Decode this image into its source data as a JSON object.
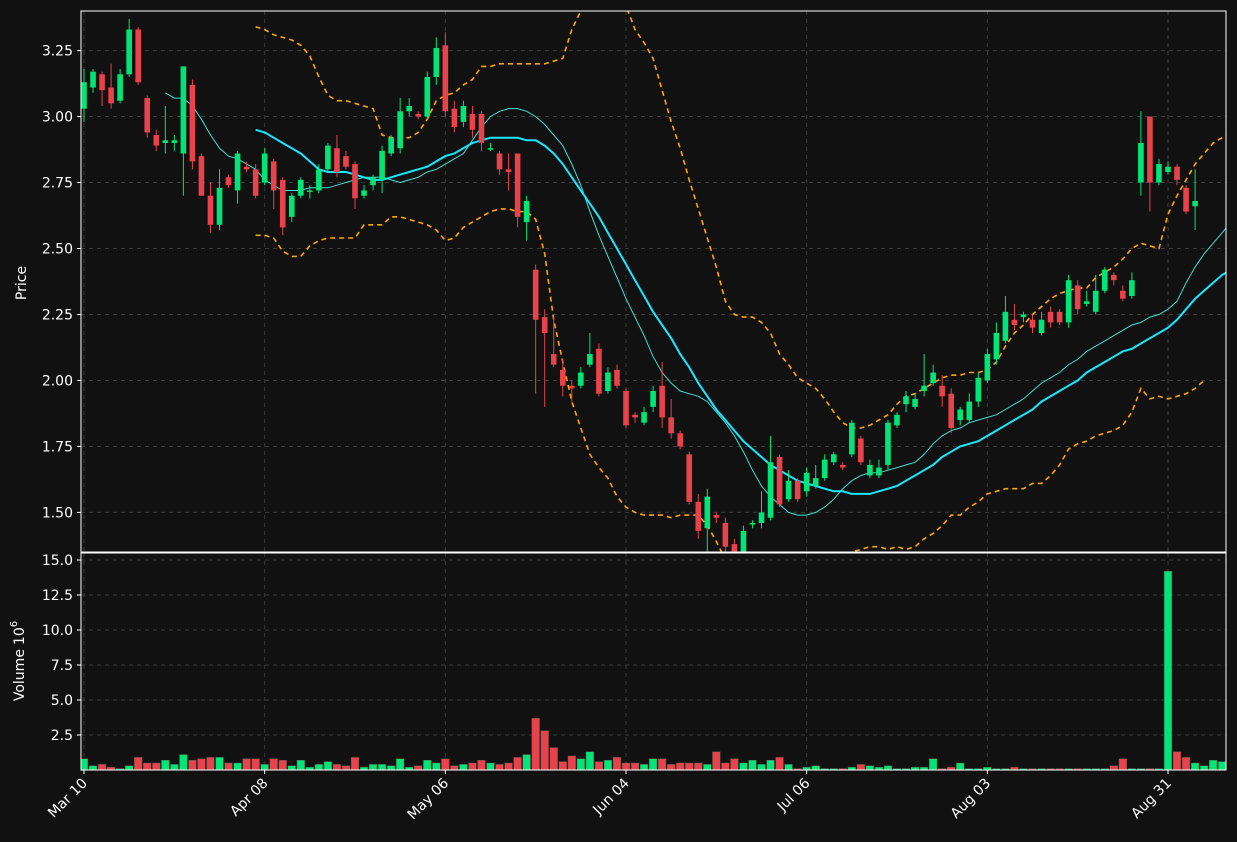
{
  "chart_data": {
    "type": "candlestick",
    "panels": [
      {
        "id": "price",
        "ylabel": "Price",
        "ylim": [
          1.35,
          3.4
        ],
        "yticks": [
          "1.50",
          "1.75",
          "2.00",
          "2.25",
          "2.50",
          "2.75",
          "3.00",
          "3.25"
        ]
      },
      {
        "id": "volume",
        "ylabel": "Volume",
        "ylabel_exponent": "6",
        "ylim": [
          0,
          15.5
        ],
        "yticks": [
          "2.5",
          "5.0",
          "7.5",
          "10.0",
          "12.5",
          "15.0"
        ]
      }
    ],
    "xticks": [
      {
        "label": "Mar 10",
        "index": 0
      },
      {
        "label": "Apr 08",
        "index": 20
      },
      {
        "label": "May 06",
        "index": 40
      },
      {
        "label": "Jun 04",
        "index": 60
      },
      {
        "label": "Jul 06",
        "index": 80
      },
      {
        "label": "Aug 03",
        "index": 100
      },
      {
        "label": "Aug 31",
        "index": 120
      }
    ],
    "n_bars": 127,
    "grid": true,
    "colors": {
      "background": "#111111",
      "up": "#00e676",
      "down": "#e8424a",
      "ma_fast": "#40e0d0",
      "ma_slow": "#18e8ff",
      "bands": "#ffa500",
      "grid": "#3a3a3a",
      "axis": "#ffffff"
    },
    "candles": [
      [
        3.03,
        3.13,
        2.98,
        3.18
      ],
      [
        3.11,
        3.17,
        3.09,
        3.18
      ],
      [
        3.16,
        3.1,
        3.04,
        3.17
      ],
      [
        3.11,
        3.05,
        3.03,
        3.2
      ],
      [
        3.06,
        3.16,
        3.05,
        3.18
      ],
      [
        3.16,
        3.33,
        3.15,
        3.37
      ],
      [
        3.33,
        3.13,
        3.12,
        3.34
      ],
      [
        3.07,
        2.94,
        2.92,
        3.08
      ],
      [
        2.93,
        2.89,
        2.87,
        2.95
      ],
      [
        2.9,
        2.91,
        2.86,
        3.04
      ],
      [
        2.9,
        2.91,
        2.87,
        2.93
      ],
      [
        2.86,
        3.19,
        2.7,
        3.19
      ],
      [
        3.12,
        2.83,
        2.8,
        3.14
      ],
      [
        2.85,
        2.7,
        2.7,
        2.86
      ],
      [
        2.7,
        2.59,
        2.56,
        2.75
      ],
      [
        2.59,
        2.73,
        2.57,
        2.8
      ],
      [
        2.77,
        2.74,
        2.73,
        2.78
      ],
      [
        2.72,
        2.86,
        2.67,
        2.87
      ],
      [
        2.81,
        2.8,
        2.79,
        2.83
      ],
      [
        2.8,
        2.7,
        2.69,
        2.82
      ],
      [
        2.75,
        2.86,
        2.74,
        2.88
      ],
      [
        2.83,
        2.72,
        2.65,
        2.84
      ],
      [
        2.76,
        2.58,
        2.55,
        2.77
      ],
      [
        2.62,
        2.7,
        2.6,
        2.71
      ],
      [
        2.7,
        2.76,
        2.69,
        2.77
      ],
      [
        2.72,
        2.72,
        2.69,
        2.74
      ],
      [
        2.72,
        2.8,
        2.71,
        2.82
      ],
      [
        2.8,
        2.89,
        2.79,
        2.9
      ],
      [
        2.88,
        2.79,
        2.77,
        2.93
      ],
      [
        2.85,
        2.81,
        2.8,
        2.87
      ],
      [
        2.82,
        2.69,
        2.65,
        2.83
      ],
      [
        2.7,
        2.72,
        2.69,
        2.74
      ],
      [
        2.74,
        2.77,
        2.72,
        2.78
      ],
      [
        2.76,
        2.87,
        2.71,
        2.89
      ],
      [
        2.86,
        2.92,
        2.85,
        2.93
      ],
      [
        2.88,
        3.02,
        2.86,
        3.07
      ],
      [
        3.02,
        3.04,
        3.0,
        3.07
      ],
      [
        3.01,
        3.0,
        2.99,
        3.02
      ],
      [
        3.0,
        3.15,
        2.99,
        3.17
      ],
      [
        3.15,
        3.26,
        3.12,
        3.3
      ],
      [
        3.27,
        3.02,
        3.0,
        3.32
      ],
      [
        3.03,
        2.96,
        2.94,
        3.06
      ],
      [
        2.98,
        3.04,
        2.96,
        3.06
      ],
      [
        3.01,
        2.95,
        2.92,
        3.04
      ],
      [
        3.01,
        2.9,
        2.87,
        3.02
      ],
      [
        2.88,
        2.88,
        2.87,
        2.9
      ],
      [
        2.86,
        2.8,
        2.78,
        2.87
      ],
      [
        2.8,
        2.79,
        2.72,
        2.86
      ],
      [
        2.86,
        2.62,
        2.58,
        2.86
      ],
      [
        2.6,
        2.68,
        2.53,
        2.7
      ],
      [
        2.42,
        2.23,
        1.95,
        2.44
      ],
      [
        2.24,
        2.18,
        1.9,
        2.27
      ],
      [
        2.1,
        2.06,
        2.05,
        2.24
      ],
      [
        2.04,
        1.98,
        1.94,
        2.08
      ],
      [
        1.98,
        1.97,
        1.92,
        2.0
      ],
      [
        1.98,
        2.03,
        1.97,
        2.05
      ],
      [
        2.06,
        2.1,
        2.05,
        2.18
      ],
      [
        2.12,
        1.95,
        1.94,
        2.14
      ],
      [
        1.96,
        2.03,
        1.95,
        2.05
      ],
      [
        2.04,
        1.98,
        1.97,
        2.06
      ],
      [
        1.96,
        1.83,
        1.82,
        1.97
      ],
      [
        1.87,
        1.86,
        1.84,
        1.88
      ],
      [
        1.84,
        1.88,
        1.83,
        1.9
      ],
      [
        1.9,
        1.96,
        1.88,
        1.98
      ],
      [
        1.98,
        1.86,
        1.82,
        2.07
      ],
      [
        1.86,
        1.8,
        1.78,
        1.93
      ],
      [
        1.8,
        1.75,
        1.74,
        1.81
      ],
      [
        1.72,
        1.54,
        1.53,
        1.73
      ],
      [
        1.54,
        1.43,
        1.4,
        1.57
      ],
      [
        1.44,
        1.56,
        1.3,
        1.59
      ],
      [
        1.49,
        1.48,
        1.46,
        1.5
      ],
      [
        1.46,
        1.37,
        1.35,
        1.48
      ],
      [
        1.38,
        1.33,
        1.32,
        1.4
      ],
      [
        1.3,
        1.43,
        1.28,
        1.45
      ],
      [
        1.46,
        1.46,
        1.44,
        1.47
      ],
      [
        1.46,
        1.5,
        1.44,
        1.58
      ],
      [
        1.48,
        1.69,
        1.47,
        1.79
      ],
      [
        1.71,
        1.53,
        1.52,
        1.72
      ],
      [
        1.55,
        1.62,
        1.54,
        1.66
      ],
      [
        1.62,
        1.55,
        1.54,
        1.63
      ],
      [
        1.58,
        1.65,
        1.56,
        1.67
      ],
      [
        1.6,
        1.63,
        1.59,
        1.68
      ],
      [
        1.63,
        1.7,
        1.62,
        1.72
      ],
      [
        1.69,
        1.72,
        1.68,
        1.73
      ],
      [
        1.68,
        1.67,
        1.66,
        1.69
      ],
      [
        1.72,
        1.84,
        1.71,
        1.85
      ],
      [
        1.78,
        1.69,
        1.68,
        1.79
      ],
      [
        1.64,
        1.68,
        1.63,
        1.7
      ],
      [
        1.64,
        1.67,
        1.63,
        1.7
      ],
      [
        1.68,
        1.84,
        1.66,
        1.85
      ],
      [
        1.83,
        1.87,
        1.82,
        1.88
      ],
      [
        1.91,
        1.94,
        1.88,
        1.96
      ],
      [
        1.9,
        1.93,
        1.89,
        1.95
      ],
      [
        1.96,
        1.98,
        1.94,
        2.1
      ],
      [
        1.99,
        2.03,
        1.98,
        2.06
      ],
      [
        1.98,
        1.94,
        1.9,
        2.02
      ],
      [
        1.95,
        1.82,
        1.8,
        1.97
      ],
      [
        1.85,
        1.89,
        1.83,
        1.9
      ],
      [
        1.85,
        1.92,
        1.84,
        1.95
      ],
      [
        1.92,
        2.01,
        1.9,
        2.03
      ],
      [
        2.0,
        2.1,
        1.99,
        2.12
      ],
      [
        2.08,
        2.18,
        2.06,
        2.22
      ],
      [
        2.15,
        2.26,
        2.14,
        2.32
      ],
      [
        2.23,
        2.21,
        2.19,
        2.29
      ],
      [
        2.24,
        2.25,
        2.22,
        2.26
      ],
      [
        2.23,
        2.2,
        2.18,
        2.25
      ],
      [
        2.18,
        2.23,
        2.17,
        2.26
      ],
      [
        2.26,
        2.22,
        2.2,
        2.28
      ],
      [
        2.26,
        2.22,
        2.21,
        2.27
      ],
      [
        2.22,
        2.38,
        2.2,
        2.4
      ],
      [
        2.36,
        2.27,
        2.25,
        2.38
      ],
      [
        2.29,
        2.3,
        2.28,
        2.34
      ],
      [
        2.26,
        2.34,
        2.25,
        2.4
      ],
      [
        2.34,
        2.42,
        2.33,
        2.43
      ],
      [
        2.4,
        2.38,
        2.36,
        2.41
      ],
      [
        2.34,
        2.31,
        2.3,
        2.36
      ],
      [
        2.32,
        2.38,
        2.31,
        2.41
      ],
      [
        2.75,
        2.9,
        2.7,
        3.02
      ],
      [
        3.0,
        2.75,
        2.64,
        3.0
      ],
      [
        2.75,
        2.82,
        2.74,
        2.84
      ],
      [
        2.79,
        2.81,
        2.78,
        2.83
      ],
      [
        2.81,
        2.76,
        2.74,
        2.82
      ],
      [
        2.73,
        2.64,
        2.63,
        2.74
      ],
      [
        2.66,
        2.68,
        2.57,
        2.8
      ]
    ],
    "volume": [
      0.8,
      0.3,
      0.4,
      0.2,
      0.1,
      0.3,
      0.9,
      0.5,
      0.5,
      0.7,
      0.4,
      1.1,
      0.7,
      0.8,
      0.9,
      0.9,
      0.5,
      0.5,
      0.8,
      0.8,
      0.4,
      0.8,
      0.7,
      0.3,
      0.7,
      0.2,
      0.4,
      0.6,
      0.4,
      0.3,
      0.9,
      0.2,
      0.4,
      0.4,
      0.3,
      0.8,
      0.2,
      0.3,
      0.7,
      0.5,
      0.8,
      0.3,
      0.4,
      0.5,
      0.7,
      0.5,
      0.4,
      0.5,
      0.9,
      1.1,
      3.7,
      2.8,
      1.6,
      0.6,
      1.0,
      0.8,
      1.3,
      0.6,
      0.7,
      0.9,
      0.5,
      0.5,
      0.4,
      0.8,
      0.8,
      0.4,
      0.5,
      0.5,
      0.5,
      0.4,
      1.3,
      0.5,
      0.8,
      0.5,
      0.7,
      0.4,
      0.7,
      0.9,
      0.4,
      0.1,
      0.2,
      0.3,
      0.1,
      0.1,
      0.1,
      0.2,
      0.4,
      0.3,
      0.2,
      0.3,
      0.1,
      0.1,
      0.2,
      0.2,
      0.8,
      0.1,
      0.2,
      0.5,
      0.1,
      0.1,
      0.2,
      0.1,
      0.1,
      0.2,
      0.1,
      0.1,
      0.1,
      0.1,
      0.1,
      0.1,
      0.1,
      0.1,
      0.1,
      0.1,
      0.3,
      0.8,
      0.1,
      0.1,
      0.1,
      0.1,
      14.2,
      1.3,
      0.9,
      0.5,
      0.3,
      0.7,
      0.6
    ],
    "overlays": [
      {
        "kind": "ma_fast",
        "start": 9,
        "values": [
          3.09,
          3.07,
          3.07,
          3.04,
          2.99,
          2.93,
          2.88,
          2.85,
          2.84,
          2.82,
          2.8,
          2.76,
          2.74,
          2.72,
          2.72,
          2.72,
          2.73,
          2.73,
          2.73,
          2.74,
          2.75,
          2.76,
          2.77,
          2.77,
          2.77,
          2.76,
          2.75,
          2.76,
          2.77,
          2.79,
          2.8,
          2.82,
          2.84,
          2.86,
          2.91,
          2.96,
          3.0,
          3.02,
          3.03,
          3.03,
          3.02,
          3.0,
          2.97,
          2.93,
          2.89,
          2.82,
          2.74,
          2.64,
          2.55,
          2.47,
          2.39,
          2.31,
          2.24,
          2.17,
          2.09,
          2.03,
          1.99,
          1.96,
          1.95,
          1.94,
          1.92,
          1.88,
          1.84,
          1.79,
          1.73,
          1.66,
          1.6,
          1.56,
          1.53,
          1.5,
          1.49,
          1.49,
          1.5,
          1.52,
          1.55,
          1.59,
          1.62,
          1.64,
          1.65,
          1.65,
          1.66,
          1.67,
          1.68,
          1.69,
          1.72,
          1.76,
          1.79,
          1.81,
          1.82,
          1.84,
          1.85,
          1.86,
          1.87,
          1.89,
          1.91,
          1.93,
          1.96,
          1.99,
          2.01,
          2.03,
          2.06,
          2.08,
          2.11,
          2.13,
          2.15,
          2.17,
          2.19,
          2.21,
          2.22,
          2.24,
          2.25,
          2.27,
          2.3,
          2.37,
          2.43,
          2.48,
          2.52,
          2.56,
          2.6,
          2.62,
          2.64
        ]
      },
      {
        "kind": "ma_slow",
        "start": 19,
        "values": [
          2.95,
          2.94,
          2.92,
          2.9,
          2.88,
          2.86,
          2.83,
          2.8,
          2.79,
          2.79,
          2.79,
          2.78,
          2.77,
          2.76,
          2.76,
          2.77,
          2.78,
          2.79,
          2.8,
          2.81,
          2.83,
          2.85,
          2.86,
          2.88,
          2.9,
          2.91,
          2.92,
          2.92,
          2.92,
          2.92,
          2.91,
          2.91,
          2.89,
          2.86,
          2.82,
          2.77,
          2.72,
          2.67,
          2.62,
          2.56,
          2.5,
          2.44,
          2.38,
          2.32,
          2.26,
          2.21,
          2.16,
          2.1,
          2.05,
          1.99,
          1.94,
          1.89,
          1.85,
          1.81,
          1.77,
          1.74,
          1.71,
          1.68,
          1.66,
          1.64,
          1.62,
          1.61,
          1.6,
          1.59,
          1.58,
          1.58,
          1.57,
          1.57,
          1.57,
          1.58,
          1.59,
          1.6,
          1.62,
          1.64,
          1.66,
          1.68,
          1.71,
          1.73,
          1.75,
          1.76,
          1.77,
          1.79,
          1.81,
          1.83,
          1.85,
          1.87,
          1.89,
          1.92,
          1.94,
          1.96,
          1.98,
          2.0,
          2.03,
          2.05,
          2.07,
          2.09,
          2.11,
          2.12,
          2.14,
          2.16,
          2.18,
          2.2,
          2.23,
          2.27,
          2.31,
          2.34,
          2.37,
          2.4,
          2.42,
          2.44,
          2.46
        ]
      },
      {
        "kind": "band_upper",
        "start": 19,
        "values": [
          3.34,
          3.33,
          3.31,
          3.3,
          3.29,
          3.27,
          3.23,
          3.15,
          3.08,
          3.06,
          3.06,
          3.05,
          3.04,
          3.03,
          2.93,
          2.92,
          2.92,
          2.92,
          2.94,
          2.99,
          3.06,
          3.08,
          3.09,
          3.12,
          3.14,
          3.19,
          3.19,
          3.2,
          3.2,
          3.2,
          3.2,
          3.2,
          3.2,
          3.21,
          3.22,
          3.33,
          3.4,
          3.46,
          3.52,
          3.52,
          3.5,
          3.42,
          3.33,
          3.28,
          3.22,
          3.1,
          2.98,
          2.88,
          2.76,
          2.65,
          2.54,
          2.43,
          2.3,
          2.25,
          2.24,
          2.24,
          2.22,
          2.18,
          2.1,
          2.06,
          2.01,
          1.99,
          1.97,
          1.93,
          1.88,
          1.84,
          1.82,
          1.82,
          1.83,
          1.85,
          1.87,
          1.91,
          1.94,
          1.95,
          1.97,
          1.99,
          2.01,
          2.02,
          2.02,
          2.03,
          2.03,
          2.04,
          2.07,
          2.13,
          2.18,
          2.21,
          2.25,
          2.28,
          2.31,
          2.33,
          2.34,
          2.35,
          2.35,
          2.39,
          2.41,
          2.43,
          2.46,
          2.5,
          2.52,
          2.51,
          2.5,
          2.63,
          2.7,
          2.76,
          2.82,
          2.86,
          2.9,
          2.92,
          2.94
        ]
      },
      {
        "kind": "band_lower",
        "start": 19,
        "values": [
          2.55,
          2.55,
          2.54,
          2.49,
          2.47,
          2.47,
          2.51,
          2.53,
          2.54,
          2.54,
          2.54,
          2.54,
          2.59,
          2.59,
          2.59,
          2.62,
          2.62,
          2.61,
          2.6,
          2.59,
          2.57,
          2.53,
          2.54,
          2.58,
          2.6,
          2.62,
          2.64,
          2.65,
          2.65,
          2.64,
          2.64,
          2.61,
          2.48,
          2.23,
          2.07,
          1.92,
          1.82,
          1.72,
          1.67,
          1.63,
          1.56,
          1.52,
          1.5,
          1.49,
          1.49,
          1.49,
          1.48,
          1.49,
          1.49,
          1.49,
          1.45,
          1.39,
          1.32,
          1.26,
          1.21,
          1.17,
          1.12,
          1.07,
          1.06,
          1.06,
          1.1,
          1.13,
          1.15,
          1.21,
          1.26,
          1.33,
          1.35,
          1.36,
          1.37,
          1.37,
          1.36,
          1.37,
          1.36,
          1.37,
          1.4,
          1.42,
          1.45,
          1.49,
          1.49,
          1.52,
          1.54,
          1.57,
          1.58,
          1.59,
          1.59,
          1.59,
          1.61,
          1.61,
          1.64,
          1.68,
          1.74,
          1.76,
          1.77,
          1.79,
          1.8,
          1.81,
          1.83,
          1.88,
          1.97,
          1.93,
          1.94,
          1.93,
          1.94,
          1.95,
          1.97,
          2.0
        ]
      }
    ]
  }
}
